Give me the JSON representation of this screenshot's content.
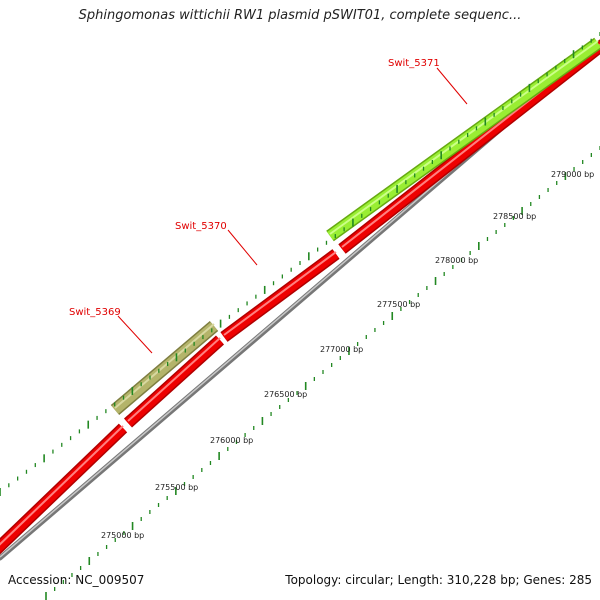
{
  "title": "Sphingomonas wittichii RW1 plasmid pSWIT01, complete sequenc...",
  "footer": {
    "accession": "Accession: NC_009507",
    "summary": "Topology: circular; Length: 310,228 bp; Genes: 285"
  },
  "colors": {
    "gene_red": "#ee0000",
    "gene_green": "#99ee33",
    "gene_olive": "#b4b46a",
    "backbone": "#888888",
    "tick_green": "#228822",
    "label_red": "#e00000"
  },
  "genes": [
    {
      "name": "Swit_5369",
      "start": 275730,
      "end": 276830,
      "track": "outer",
      "color": "olive"
    },
    {
      "name": "Swit_5370",
      "start": 276920,
      "end": 277940,
      "track": "inner",
      "color": "red"
    },
    {
      "name": "Swit_5371",
      "start": 278040,
      "end": 279600,
      "track": "outer",
      "color": "green"
    }
  ],
  "ruler": {
    "labels": [
      "275000 bp",
      "275500 bp",
      "276000 bp",
      "276500 bp",
      "277000 bp",
      "277500 bp",
      "278000 bp",
      "278500 bp",
      "279000 bp"
    ]
  }
}
